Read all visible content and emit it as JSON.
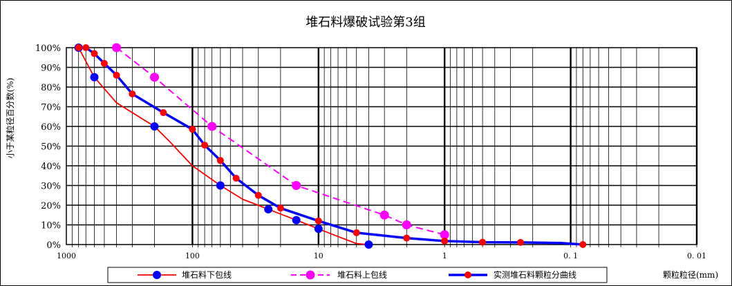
{
  "chart_data": {
    "type": "line",
    "title": "堆石料爆破试验第3组",
    "xlabel": "颗粒粒径(mm)",
    "ylabel": "小于某粒径百分数(%)",
    "x_scale": "log",
    "x_reversed": true,
    "xlim": [
      1000,
      0.01
    ],
    "ylim": [
      0,
      100
    ],
    "grid": true,
    "legend_position": "bottom",
    "x_tick_labels": [
      "1000",
      "100",
      "10",
      "1",
      "0.1",
      "0.01"
    ],
    "y_tick_labels": [
      "0%",
      "10%",
      "20%",
      "30%",
      "40%",
      "50%",
      "60%",
      "70%",
      "80%",
      "90%",
      "100%"
    ],
    "series": [
      {
        "name": "堆石料下包线",
        "color": "#ff0000",
        "marker_color": "#0000ff",
        "style": "solid",
        "x": [
          800,
          600,
          400,
          200,
          150,
          100,
          60,
          40,
          20,
          12,
          8,
          5,
          4
        ],
        "y": [
          100,
          85,
          72,
          60,
          52,
          40,
          30,
          23,
          15.5,
          10,
          5.5,
          0.5,
          0
        ],
        "marker_points": [
          800,
          600,
          200,
          60,
          25,
          15,
          10,
          4
        ]
      },
      {
        "name": "堆石料上包线",
        "color": "#ff00ff",
        "marker_color": "#ff00ff",
        "style": "dashed",
        "x": [
          400,
          200,
          70,
          15,
          3,
          2,
          1
        ],
        "y": [
          100,
          85,
          60,
          30,
          15,
          10,
          5
        ],
        "marker_points": [
          400,
          200,
          70,
          15,
          3,
          2,
          1
        ]
      },
      {
        "name": "实测堆石料颗粒分曲线",
        "color": "#0000ff",
        "marker_color": "#ff0000",
        "style": "solid",
        "x": [
          800,
          700,
          600,
          500,
          400,
          300,
          170,
          100,
          80,
          60,
          45,
          30,
          20,
          10,
          5,
          2,
          1,
          0.5,
          0.25,
          0.12,
          0.08
        ],
        "y": [
          100,
          100,
          97,
          92,
          86,
          76.5,
          67,
          58.5,
          50.5,
          42.7,
          33.7,
          25,
          18.5,
          12,
          6,
          3.3,
          1.8,
          1.2,
          1.1,
          0.8,
          0
        ],
        "marker_points": [
          800,
          700,
          600,
          500,
          400,
          300,
          170,
          100,
          80,
          60,
          45,
          30,
          20,
          10,
          5,
          2,
          1,
          0.5,
          0.25,
          0.08
        ]
      }
    ]
  }
}
